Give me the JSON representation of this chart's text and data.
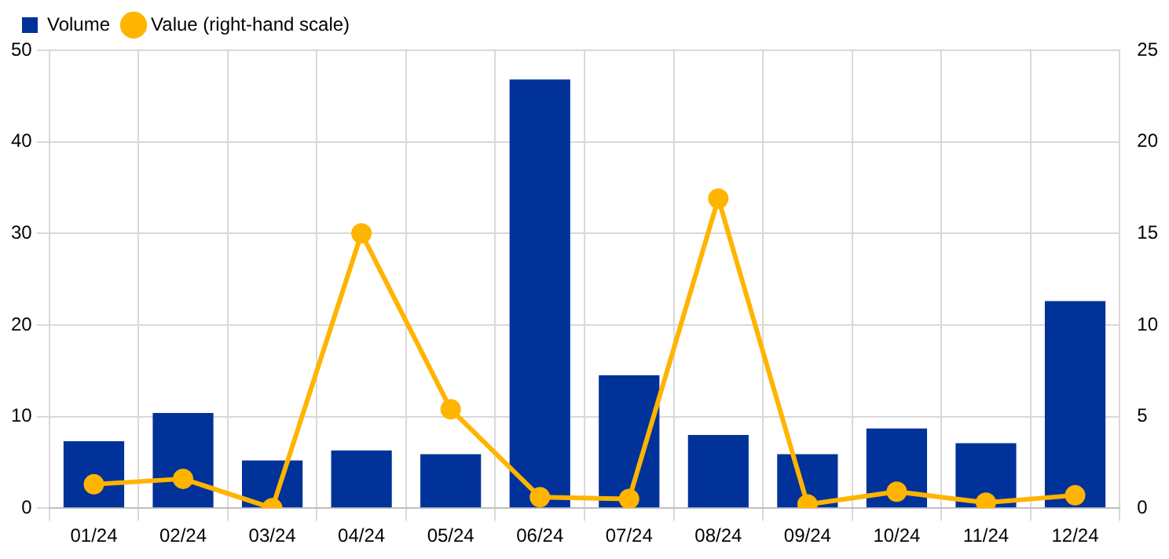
{
  "chart_data": {
    "type": "bar",
    "categories": [
      "01/24",
      "02/24",
      "03/24",
      "04/24",
      "05/24",
      "06/24",
      "07/24",
      "08/24",
      "09/24",
      "10/24",
      "11/24",
      "12/24"
    ],
    "series": [
      {
        "name": "Volume",
        "color": "#003299",
        "values": [
          7.3,
          10.4,
          5.2,
          6.3,
          5.9,
          46.8,
          14.5,
          8.0,
          5.9,
          8.7,
          7.1,
          22.6
        ]
      },
      {
        "name": "Value (right-hand scale)",
        "type": "line",
        "axis": "y2",
        "color": "#ffb400",
        "marker": "circle",
        "values": [
          1.3,
          1.6,
          0,
          15.0,
          5.4,
          0.6,
          0.5,
          16.9,
          0.2,
          0.9,
          0.3,
          0.7
        ]
      }
    ],
    "ylim": [
      0,
      50
    ],
    "yticks": [
      0,
      10,
      20,
      30,
      40,
      50
    ],
    "y2lim": [
      0,
      25
    ],
    "y2ticks": [
      0,
      5,
      10,
      15,
      20,
      25
    ],
    "grid": true,
    "legend": "top left"
  }
}
